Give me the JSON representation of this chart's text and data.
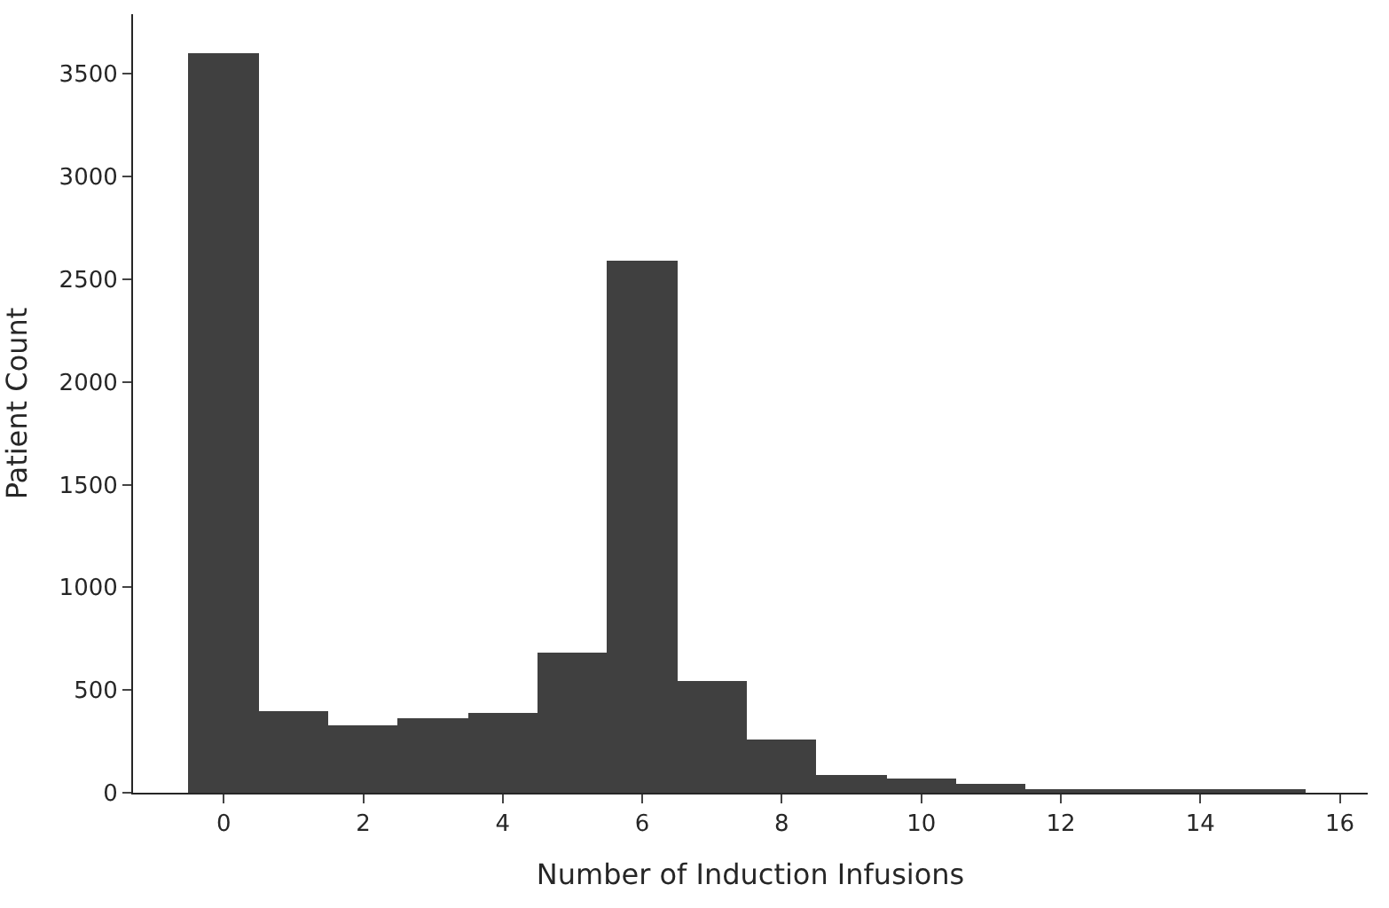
{
  "chart_data": {
    "type": "histogram",
    "xlabel": "Number of Induction Infusions",
    "ylabel": "Patient Count",
    "color": "#404040",
    "bins": [
      -0.5,
      0.5,
      1.5,
      2.5,
      3.5,
      4.5,
      5.5,
      6.5,
      7.5,
      8.5,
      9.5,
      10.5,
      11.5,
      12.5,
      13.5,
      14.5,
      15.5
    ],
    "values": [
      3600,
      400,
      330,
      360,
      390,
      680,
      2590,
      540,
      260,
      90,
      70,
      40,
      20,
      10,
      20,
      20
    ],
    "xlim": [
      -1.3,
      16.4
    ],
    "xticks": [
      0,
      2,
      4,
      6,
      8,
      10,
      12,
      14,
      16
    ],
    "ylim": [
      0,
      3790
    ],
    "yticks": [
      0,
      500,
      1000,
      1500,
      2000,
      2500,
      3000,
      3500
    ]
  }
}
